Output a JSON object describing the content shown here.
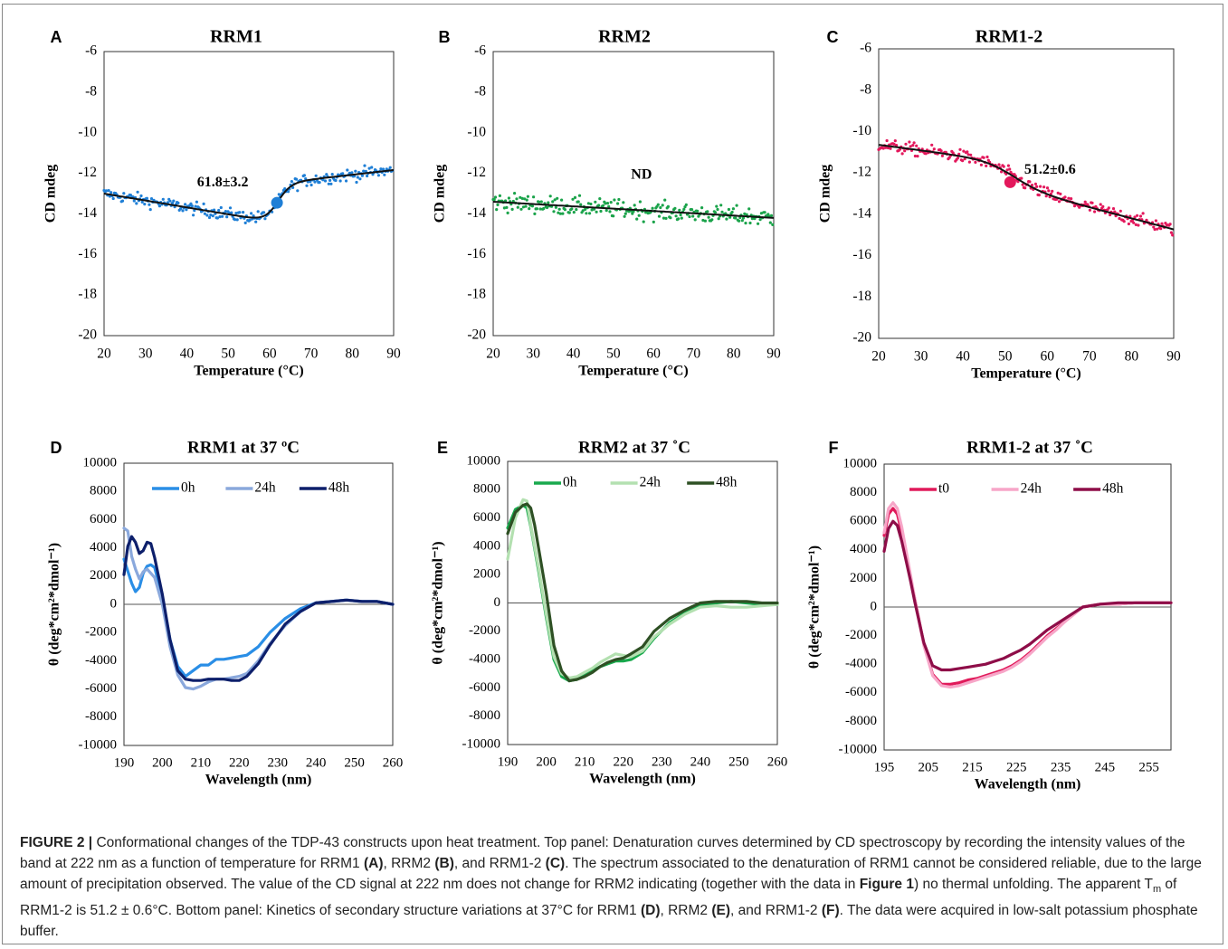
{
  "chart_data": [
    {
      "panel": "A",
      "type": "scatter",
      "title": "RRM1",
      "xlabel": "Temperature (°C)",
      "ylabel": "CD mdeg",
      "xlim": [
        20,
        90
      ],
      "ylim": [
        -20,
        -6
      ],
      "xticks": [
        20,
        30,
        40,
        50,
        60,
        70,
        80,
        90
      ],
      "yticks": [
        -6,
        -8,
        -10,
        -12,
        -14,
        -16,
        -18,
        -20
      ],
      "color": "#1f7fd6",
      "fit_curve": {
        "type": "sigmoid",
        "a0": -13.0,
        "a1": -0.034,
        "b0": -13.45,
        "b1": 0.023,
        "tm": 61.8,
        "w": 1.6
      },
      "scatter_noise": 0.22,
      "tm_point": {
        "x": 61.8,
        "y": -13.45
      },
      "annotation": "61.8±3.2",
      "grid": false
    },
    {
      "panel": "B",
      "type": "scatter",
      "title": "RRM2",
      "xlabel": "Temperature (°C)",
      "ylabel": "CD mdeg",
      "xlim": [
        20,
        90
      ],
      "ylim": [
        -20,
        -6
      ],
      "xticks": [
        20,
        30,
        40,
        50,
        60,
        70,
        80,
        90
      ],
      "yticks": [
        -6,
        -8,
        -10,
        -12,
        -14,
        -16,
        -18,
        -20
      ],
      "color": "#1aa34a",
      "fit_curve": {
        "type": "linear",
        "a0": -13.4,
        "a1": -0.0114
      },
      "scatter_noise": 0.32,
      "annotation": "ND",
      "grid": false
    },
    {
      "panel": "C",
      "type": "scatter",
      "title": "RRM1-2",
      "xlabel": "Temperature (°C)",
      "ylabel": "CD mdeg",
      "xlim": [
        20,
        90
      ],
      "ylim": [
        -20,
        -6
      ],
      "xticks": [
        20,
        30,
        40,
        50,
        60,
        70,
        80,
        90
      ],
      "yticks": [
        -6,
        -8,
        -10,
        -12,
        -14,
        -16,
        -18,
        -20
      ],
      "color": "#e3185c",
      "fit_curve": {
        "type": "sigmoid",
        "a0": -10.64,
        "a1": -0.027,
        "b0": -11.0,
        "b1": -0.0533,
        "tm": 51.2,
        "w": 3.5
      },
      "scatter_noise": 0.22,
      "tm_point": {
        "x": 51.2,
        "y": -12.45
      },
      "annotation": "51.2±0.6",
      "grid": false
    },
    {
      "panel": "D",
      "type": "line",
      "title": "RRM1 at 37 ºC",
      "xlabel": "Wavelength (nm)",
      "ylabel": "θ (deg*cm²*dmol⁻¹)",
      "xlim": [
        190,
        260
      ],
      "ylim": [
        -10000,
        10000
      ],
      "xticks": [
        190,
        200,
        210,
        220,
        230,
        240,
        250,
        260
      ],
      "yticks": [
        10000,
        8000,
        6000,
        4000,
        2000,
        0,
        -2000,
        -4000,
        -6000,
        -8000,
        -10000
      ],
      "legend_position": "top",
      "series": [
        {
          "name": "0h",
          "color": "#2a8ee6",
          "x": [
            190,
            192,
            193,
            194,
            195,
            196,
            197,
            198,
            200,
            202,
            204,
            206,
            208,
            210,
            212,
            214,
            216,
            218,
            220,
            222,
            225,
            228,
            232,
            236,
            240,
            244,
            248,
            252,
            256,
            260
          ],
          "y": [
            3200,
            1500,
            900,
            1200,
            2200,
            2700,
            2800,
            2600,
            500,
            -2500,
            -4400,
            -5100,
            -4700,
            -4300,
            -4300,
            -3900,
            -3900,
            -3800,
            -3700,
            -3600,
            -3000,
            -2000,
            -1000,
            -300,
            100,
            200,
            300,
            200,
            200,
            0
          ]
        },
        {
          "name": "24h",
          "color": "#8aa8dc",
          "x": [
            190,
            191,
            192,
            193,
            194,
            195,
            196,
            197,
            198,
            200,
            202,
            204,
            206,
            208,
            210,
            212,
            214,
            216,
            218,
            220,
            222,
            225,
            228,
            232,
            236,
            240,
            244,
            248,
            252,
            256,
            260
          ],
          "y": [
            5400,
            5200,
            3400,
            2500,
            1800,
            2300,
            2500,
            2200,
            1900,
            0,
            -3000,
            -5000,
            -5900,
            -6000,
            -5800,
            -5500,
            -5300,
            -5300,
            -5200,
            -5100,
            -4900,
            -4000,
            -2800,
            -1500,
            -500,
            100,
            200,
            300,
            200,
            200,
            0
          ]
        },
        {
          "name": "48h",
          "color": "#0d1f6b",
          "x": [
            190,
            191,
            192,
            193,
            194,
            195,
            196,
            197,
            198,
            200,
            202,
            204,
            206,
            208,
            210,
            212,
            214,
            216,
            218,
            220,
            222,
            225,
            228,
            232,
            236,
            240,
            244,
            248,
            252,
            256,
            260
          ],
          "y": [
            2100,
            4100,
            4800,
            4400,
            3600,
            3800,
            4400,
            4300,
            3300,
            700,
            -2500,
            -4700,
            -5300,
            -5400,
            -5400,
            -5300,
            -5300,
            -5300,
            -5400,
            -5400,
            -5100,
            -4200,
            -2900,
            -1400,
            -500,
            100,
            200,
            300,
            200,
            200,
            0
          ]
        }
      ],
      "grid": false
    },
    {
      "panel": "E",
      "type": "line",
      "title": "RRM2 at 37 ˚C",
      "xlabel": "Wavelength (nm)",
      "ylabel": "θ (deg*cm²*dmol⁻¹)",
      "xlim": [
        190,
        260
      ],
      "ylim": [
        -10000,
        10000
      ],
      "xticks": [
        190,
        200,
        210,
        220,
        230,
        240,
        250,
        260
      ],
      "yticks": [
        10000,
        8000,
        6000,
        4000,
        2000,
        0,
        -2000,
        -4000,
        -6000,
        -8000,
        -10000
      ],
      "legend_position": "top",
      "series": [
        {
          "name": "0h",
          "color": "#18a94d",
          "x": [
            190,
            192,
            194,
            195,
            196,
            198,
            200,
            202,
            204,
            206,
            208,
            210,
            212,
            214,
            216,
            218,
            220,
            222,
            225,
            228,
            232,
            236,
            240,
            244,
            248,
            252,
            256,
            260
          ],
          "y": [
            5300,
            6600,
            6900,
            6700,
            5400,
            2300,
            -1000,
            -4000,
            -5200,
            -5500,
            -5400,
            -5100,
            -4800,
            -4500,
            -4300,
            -4100,
            -4100,
            -4000,
            -3500,
            -2500,
            -1400,
            -700,
            -200,
            0,
            100,
            0,
            -100,
            -100
          ]
        },
        {
          "name": "24h",
          "color": "#b3e0b0",
          "x": [
            190,
            192,
            194,
            195,
            196,
            198,
            200,
            202,
            204,
            206,
            208,
            210,
            212,
            214,
            216,
            218,
            220,
            222,
            225,
            228,
            232,
            236,
            240,
            244,
            248,
            252,
            256,
            260
          ],
          "y": [
            3100,
            6000,
            7300,
            7200,
            5500,
            2500,
            -800,
            -3800,
            -5000,
            -5300,
            -5200,
            -4900,
            -4600,
            -4200,
            -3900,
            -3600,
            -3700,
            -3800,
            -3400,
            -2400,
            -1500,
            -800,
            -300,
            -200,
            -300,
            -300,
            -200,
            -100
          ]
        },
        {
          "name": "48h",
          "color": "#2e5024",
          "x": [
            190,
            192,
            194,
            195,
            196,
            197,
            198,
            200,
            202,
            204,
            206,
            208,
            210,
            212,
            214,
            216,
            218,
            220,
            222,
            225,
            228,
            232,
            236,
            240,
            244,
            248,
            252,
            256,
            260
          ],
          "y": [
            4900,
            6400,
            6900,
            7000,
            6700,
            5500,
            3900,
            700,
            -3000,
            -4800,
            -5500,
            -5400,
            -5200,
            -4900,
            -4500,
            -4200,
            -4000,
            -3900,
            -3600,
            -3100,
            -2000,
            -1100,
            -500,
            0,
            100,
            100,
            100,
            0,
            0
          ]
        }
      ],
      "grid": false
    },
    {
      "panel": "F",
      "type": "line",
      "title": "RRM1-2 at 37 ˚C",
      "xlabel": "Wavelength (nm)",
      "ylabel": "θ (deg*cm²*dmol⁻¹)",
      "xlim": [
        195,
        260
      ],
      "ylim": [
        -10000,
        10000
      ],
      "xticks": [
        195,
        205,
        215,
        225,
        235,
        245,
        255
      ],
      "yticks": [
        10000,
        8000,
        6000,
        4000,
        2000,
        0,
        -2000,
        -4000,
        -6000,
        -8000,
        -10000
      ],
      "legend_position": "top",
      "series": [
        {
          "name": "t0",
          "color": "#e01a5a",
          "x": [
            195,
            196,
            197,
            198,
            199,
            200,
            201,
            202,
            204,
            206,
            208,
            210,
            212,
            214,
            216,
            218,
            220,
            222,
            224,
            226,
            228,
            230,
            232,
            234,
            236,
            238,
            240,
            244,
            248,
            252,
            256,
            260
          ],
          "y": [
            5000,
            6500,
            6900,
            6500,
            5200,
            3600,
            2000,
            500,
            -2600,
            -4700,
            -5400,
            -5400,
            -5300,
            -5100,
            -5000,
            -4800,
            -4600,
            -4400,
            -4100,
            -3700,
            -3200,
            -2600,
            -2000,
            -1500,
            -1000,
            -500,
            0,
            200,
            200,
            300,
            300,
            300
          ]
        },
        {
          "name": "24h",
          "color": "#f7a6c8",
          "x": [
            195,
            196,
            197,
            198,
            199,
            200,
            201,
            202,
            204,
            206,
            208,
            210,
            212,
            214,
            216,
            218,
            220,
            222,
            224,
            226,
            228,
            230,
            232,
            234,
            236,
            238,
            240,
            244,
            248,
            252,
            256,
            260
          ],
          "y": [
            5200,
            6900,
            7300,
            6900,
            5600,
            3900,
            2200,
            500,
            -2700,
            -4800,
            -5500,
            -5600,
            -5500,
            -5300,
            -5100,
            -4900,
            -4700,
            -4500,
            -4200,
            -3800,
            -3300,
            -2700,
            -2100,
            -1600,
            -1000,
            -500,
            0,
            200,
            200,
            300,
            300,
            300
          ]
        },
        {
          "name": "48h",
          "color": "#8e0d48",
          "x": [
            195,
            196,
            197,
            198,
            199,
            200,
            201,
            202,
            204,
            206,
            208,
            210,
            212,
            214,
            216,
            218,
            220,
            222,
            224,
            226,
            228,
            230,
            232,
            234,
            236,
            238,
            240,
            244,
            248,
            252,
            256,
            260
          ],
          "y": [
            3900,
            5500,
            6000,
            5700,
            4600,
            3200,
            1800,
            300,
            -2500,
            -4100,
            -4400,
            -4400,
            -4300,
            -4200,
            -4100,
            -4000,
            -3800,
            -3600,
            -3300,
            -3000,
            -2600,
            -2100,
            -1600,
            -1200,
            -800,
            -400,
            0,
            200,
            300,
            300,
            300,
            300
          ]
        }
      ],
      "grid": false
    }
  ],
  "caption": {
    "label": "FIGURE 2 |",
    "p1": " Conformational changes of the TDP-43 constructs upon heat treatment. Top panel: Denaturation curves determined by CD spectroscopy by recording the intensity values of the band at 222 nm as a function of temperature for RRM1 ",
    "refA": "(A)",
    "p2": ", RRM2 ",
    "refB": "(B)",
    "p3": ", and RRM1-2 ",
    "refC": "(C)",
    "p4": ". The spectrum associated to the denaturation of RRM1 cannot be considered reliable, due to the large amount of precipitation observed. The value of the CD signal at 222 nm does not change for RRM2 indicating (together with the data in ",
    "refFig1": "Figure 1",
    "p5": ") no thermal unfolding. The apparent T",
    "sub_m": "m",
    "p6": " of RRM1-2 is 51.2 ± 0.6°C. Bottom panel: Kinetics of secondary structure variations at 37°C for RRM1 ",
    "refD": "(D)",
    "p7": ", RRM2 ",
    "refE": "(E)",
    "p8": ", and RRM1-2 ",
    "refF": "(F)",
    "p9": ". The data were acquired in low-salt potassium phosphate buffer."
  }
}
